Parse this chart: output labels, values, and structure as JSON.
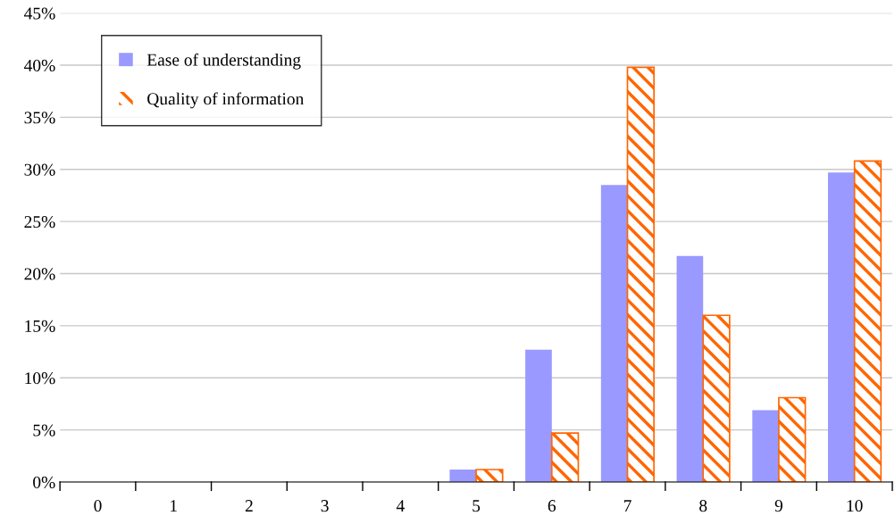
{
  "chart_data": {
    "type": "bar",
    "categories": [
      "0",
      "1",
      "2",
      "3",
      "4",
      "5",
      "6",
      "7",
      "8",
      "9",
      "10"
    ],
    "series": [
      {
        "name": "Ease of understanding",
        "color": "#9999ff",
        "values": [
          0,
          0,
          0,
          0,
          0,
          1.2,
          12.7,
          28.5,
          21.7,
          6.9,
          29.7
        ]
      },
      {
        "name": "Quality of information",
        "color": "#ff6600",
        "values": [
          0,
          0,
          0,
          0,
          0,
          1.2,
          4.7,
          39.8,
          16.0,
          8.1,
          30.8
        ]
      }
    ],
    "ylim": [
      0,
      45
    ],
    "yticks": [
      {
        "value": 0,
        "label": "0%"
      },
      {
        "value": 5,
        "label": "5%"
      },
      {
        "value": 10,
        "label": "10%"
      },
      {
        "value": 15,
        "label": "15%"
      },
      {
        "value": 20,
        "label": "20%"
      },
      {
        "value": 25,
        "label": "25%"
      },
      {
        "value": 30,
        "label": "30%"
      },
      {
        "value": 35,
        "label": "35%"
      },
      {
        "value": 40,
        "label": "40%"
      },
      {
        "value": 45,
        "label": "45%"
      }
    ],
    "grid": "y",
    "legend": "top left"
  }
}
